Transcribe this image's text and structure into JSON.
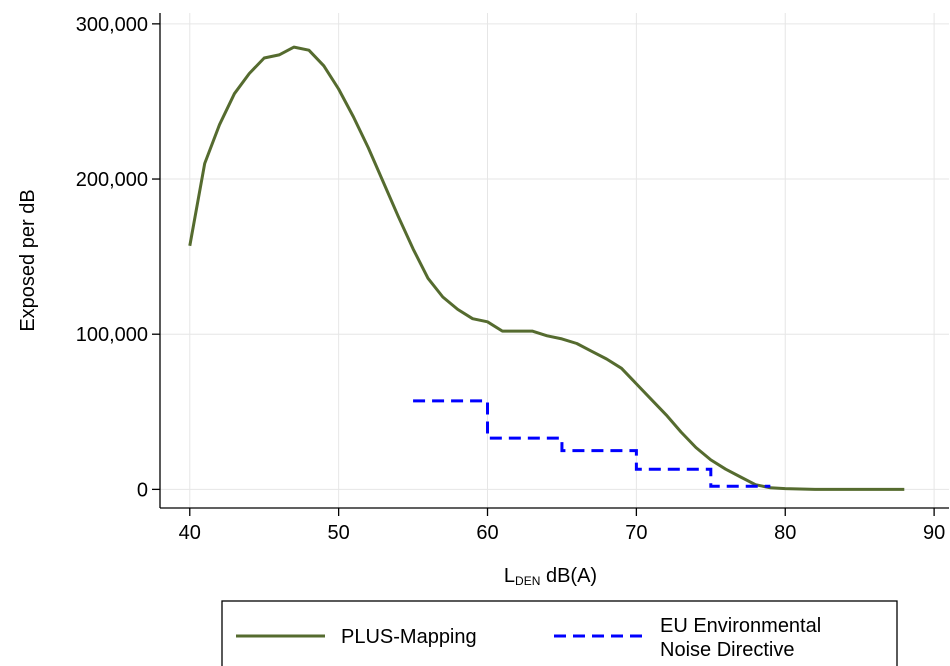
{
  "chart_data": {
    "type": "line",
    "title": "",
    "xlabel_main": "L",
    "xlabel_sub": "DEN",
    "xlabel_unit": " dB(A)",
    "ylabel": "Exposed per dB",
    "xlim": [
      38,
      91
    ],
    "ylim": [
      -12000,
      307000
    ],
    "x_ticks": [
      40,
      50,
      60,
      70,
      80,
      90
    ],
    "x_tick_labels": [
      "40",
      "50",
      "60",
      "70",
      "80",
      "90"
    ],
    "y_ticks": [
      0,
      100000,
      200000,
      300000
    ],
    "y_tick_labels": [
      "0",
      "100,000",
      "200,000",
      "300,000"
    ],
    "grid": true,
    "legend_position": "bottom",
    "series": [
      {
        "name": "PLUS-Mapping",
        "style": "solid",
        "color": "#556b2f",
        "points": [
          [
            40,
            157000
          ],
          [
            41,
            210000
          ],
          [
            42,
            235000
          ],
          [
            43,
            255000
          ],
          [
            44,
            268000
          ],
          [
            45,
            278000
          ],
          [
            46,
            280000
          ],
          [
            47,
            285000
          ],
          [
            48,
            283000
          ],
          [
            49,
            273000
          ],
          [
            50,
            258000
          ],
          [
            51,
            240000
          ],
          [
            52,
            220000
          ],
          [
            53,
            198000
          ],
          [
            54,
            176000
          ],
          [
            55,
            155000
          ],
          [
            56,
            136000
          ],
          [
            57,
            124000
          ],
          [
            58,
            116000
          ],
          [
            59,
            110000
          ],
          [
            60,
            108000
          ],
          [
            61,
            102000
          ],
          [
            62,
            102000
          ],
          [
            63,
            102000
          ],
          [
            64,
            99000
          ],
          [
            65,
            97000
          ],
          [
            66,
            94000
          ],
          [
            67,
            89000
          ],
          [
            68,
            84000
          ],
          [
            69,
            78000
          ],
          [
            70,
            68000
          ],
          [
            71,
            58000
          ],
          [
            72,
            48000
          ],
          [
            73,
            37000
          ],
          [
            74,
            27000
          ],
          [
            75,
            19000
          ],
          [
            76,
            13000
          ],
          [
            77,
            8000
          ],
          [
            78,
            3000
          ],
          [
            79,
            1000
          ],
          [
            80,
            500
          ],
          [
            82,
            0
          ],
          [
            85,
            0
          ],
          [
            88,
            0
          ]
        ]
      },
      {
        "name": "EU Environmental Noise Directive",
        "name_lines": [
          "EU Environmental",
          "Noise Directive"
        ],
        "style": "dashed",
        "color": "#0000ff",
        "steps": [
          {
            "x0": 55,
            "x1": 60,
            "y": 57000
          },
          {
            "x0": 60,
            "x1": 65,
            "y": 33000
          },
          {
            "x0": 65,
            "x1": 70,
            "y": 25000
          },
          {
            "x0": 70,
            "x1": 75,
            "y": 13000
          },
          {
            "x0": 75,
            "x1": 79,
            "y": 2000
          }
        ]
      }
    ]
  }
}
